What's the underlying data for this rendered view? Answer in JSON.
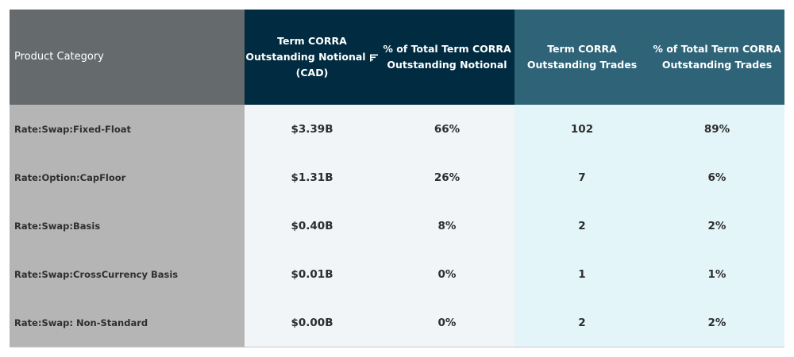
{
  "table": {
    "headers": {
      "category": "Product Category",
      "notional_line1": "Term CORRA",
      "notional_line2": "Outstanding Notional",
      "notional_line3": "(CAD)",
      "pct_notional_line1": "% of Total Term CORRA",
      "pct_notional_line2": "Outstanding Notional",
      "trades_line1": "Term CORRA",
      "trades_line2": "Outstanding Trades",
      "pct_trades_line1": "% of Total Term CORRA",
      "pct_trades_line2": "Outstanding Trades"
    },
    "sort_icon": "sort-icon",
    "rows": [
      {
        "category": "Rate:Swap:Fixed-Float",
        "notional": "$3.39B",
        "pct_notional": "66%",
        "trades": "102",
        "pct_trades": "89%"
      },
      {
        "category": "Rate:Option:CapFloor",
        "notional": "$1.31B",
        "pct_notional": "26%",
        "trades": "7",
        "pct_trades": "6%"
      },
      {
        "category": "Rate:Swap:Basis",
        "notional": "$0.40B",
        "pct_notional": "8%",
        "trades": "2",
        "pct_trades": "2%"
      },
      {
        "category": "Rate:Swap:CrossCurrency Basis",
        "notional": "$0.01B",
        "pct_notional": "0%",
        "trades": "1",
        "pct_trades": "1%"
      },
      {
        "category": "Rate:Swap: Non-Standard",
        "notional": "$0.00B",
        "pct_notional": "0%",
        "trades": "2",
        "pct_trades": "2%"
      }
    ]
  },
  "colors": {
    "category_header_bg": "#656b6d",
    "notional_header_bg": "#002b40",
    "trades_header_bg": "#2f6478",
    "category_cell_bg": "#b5b5b5",
    "notional_cell_bg": "#f1f5f7",
    "trades_cell_bg": "#e4f5fa"
  }
}
